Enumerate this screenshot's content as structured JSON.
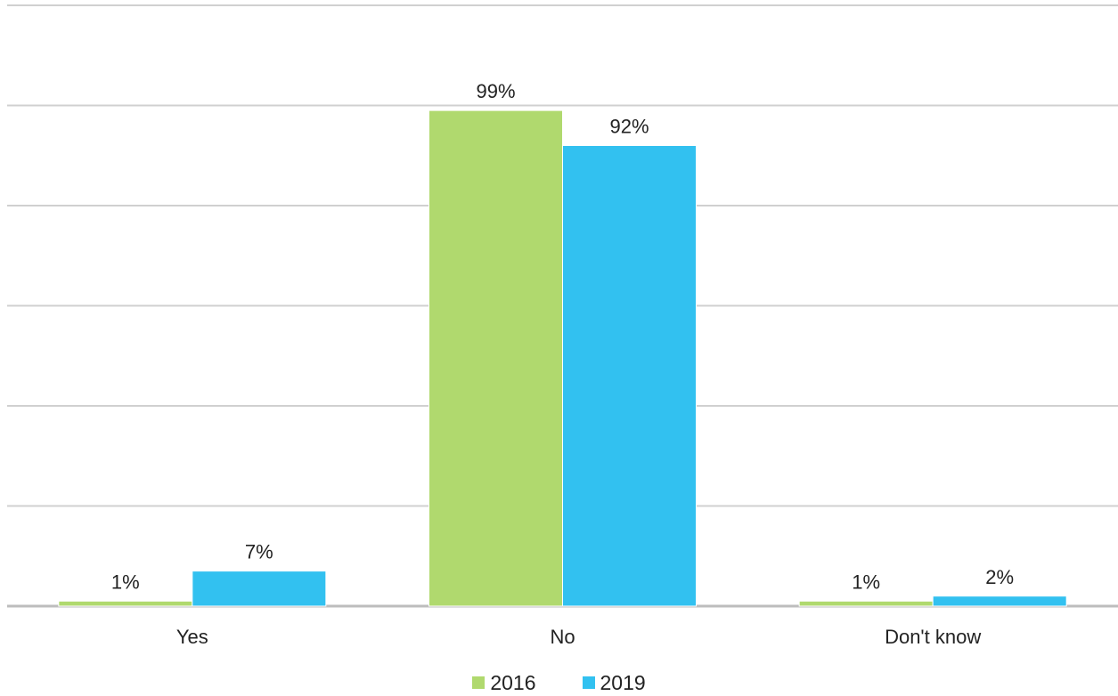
{
  "chart_data": {
    "type": "bar",
    "categories": [
      "Yes",
      "No",
      "Don't know"
    ],
    "series": [
      {
        "name": "2016",
        "values": [
          1,
          99,
          1
        ],
        "labels": [
          "1%",
          "99%",
          "1%"
        ],
        "color": "#b0d96e"
      },
      {
        "name": "2019",
        "values": [
          7,
          92,
          2
        ],
        "labels": [
          "7%",
          "92%",
          "2%"
        ],
        "color": "#32c1f0"
      }
    ],
    "ylim": [
      0,
      100
    ],
    "grid": true,
    "legend_position": "bottom-center"
  }
}
